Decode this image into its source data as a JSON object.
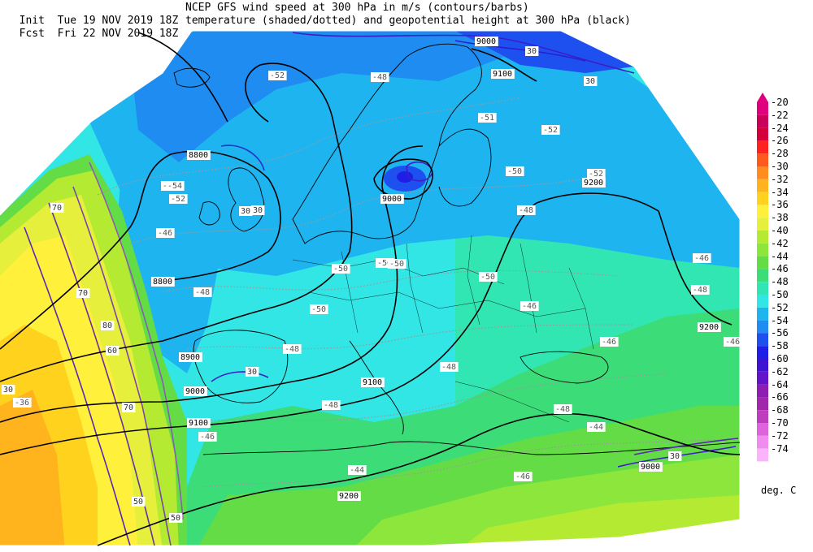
{
  "header": {
    "init_label": "Init",
    "init_time": "Tue 19 NOV 2019 18Z",
    "fcst_label": "Fcst",
    "fcst_time": "Fri 22 NOV 2019 18Z",
    "line1": "NCEP GFS wind speed at 300 hPa in m/s (contours/barbs)",
    "line2": "temperature (shaded/dotted) and geopotential height at 300 hPa (black)"
  },
  "colorbar": {
    "labels": [
      "-20",
      "-22",
      "-24",
      "-26",
      "-28",
      "-30",
      "-32",
      "-34",
      "-36",
      "-38",
      "-40",
      "-42",
      "-44",
      "-46",
      "-48",
      "-50",
      "-52",
      "-54",
      "-56",
      "-58",
      "-60",
      "-62",
      "-64",
      "-66",
      "-68",
      "-70",
      "-72",
      "-74"
    ],
    "colors": [
      "#e0007e",
      "#c8005a",
      "#d4003c",
      "#ff2020",
      "#ff5a1e",
      "#ff8c1e",
      "#ffb41e",
      "#ffd21e",
      "#fff03c",
      "#e6f03c",
      "#b4eb32",
      "#8ce63c",
      "#64dc46",
      "#3cdc78",
      "#32e6b4",
      "#32e6e6",
      "#1eb4f0",
      "#1e8cf0",
      "#1e50f0",
      "#1e1ee6",
      "#3c14d2",
      "#6414c8",
      "#8c1eb4",
      "#a028aa",
      "#be3cbe",
      "#dc64dc",
      "#f08cf0",
      "#fab4fa"
    ],
    "units": "deg. C"
  },
  "height_labels": [
    "8800",
    "8800",
    "8900",
    "9000",
    "9100",
    "9000",
    "9100",
    "9200",
    "9200",
    "9200",
    "9000",
    "9100",
    "9000"
  ],
  "temperature_labels": [
    "-52",
    "-52",
    "-51",
    "-52",
    "-50",
    "-52",
    "-50",
    "-50",
    "-48",
    "-50",
    "-50",
    "-48",
    "-48",
    "-48",
    "-46",
    "-46",
    "-44",
    "-46",
    "-44",
    "-48",
    "-50",
    "-46",
    "-48",
    "-46",
    "-46",
    "-36",
    "-48",
    "-48",
    "-54",
    "-54",
    "-46"
  ],
  "wind_labels": [
    "30",
    "30",
    "30",
    "30",
    "30",
    "30",
    "30",
    "70",
    "70",
    "80",
    "70",
    "60",
    "50",
    "50"
  ]
}
